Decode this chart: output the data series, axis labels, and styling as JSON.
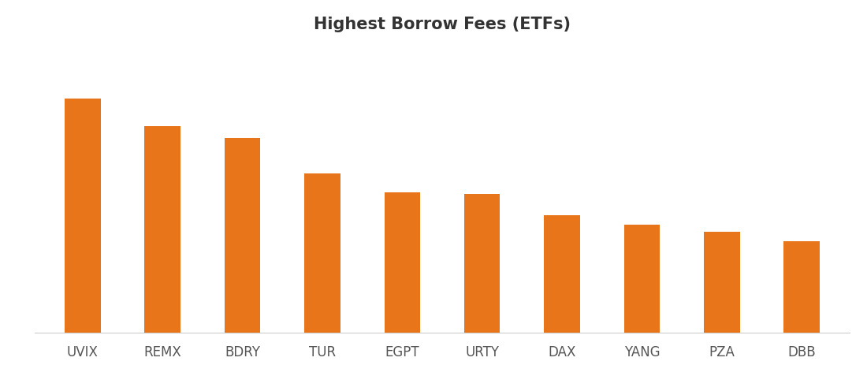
{
  "title": "Highest Borrow Fees (ETFs)",
  "categories": [
    "UVIX",
    "REMX",
    "BDRY",
    "TUR",
    "EGPT",
    "URTY",
    "DAX",
    "YANG",
    "PZA",
    "DBB"
  ],
  "values": [
    100,
    88,
    83,
    68,
    60,
    59,
    50,
    46,
    43,
    39
  ],
  "bar_color": "#E8751A",
  "background_color": "#ffffff",
  "title_fontsize": 15,
  "title_fontweight": "bold",
  "title_color": "#333333",
  "tick_label_fontsize": 12,
  "tick_label_color": "#555555"
}
